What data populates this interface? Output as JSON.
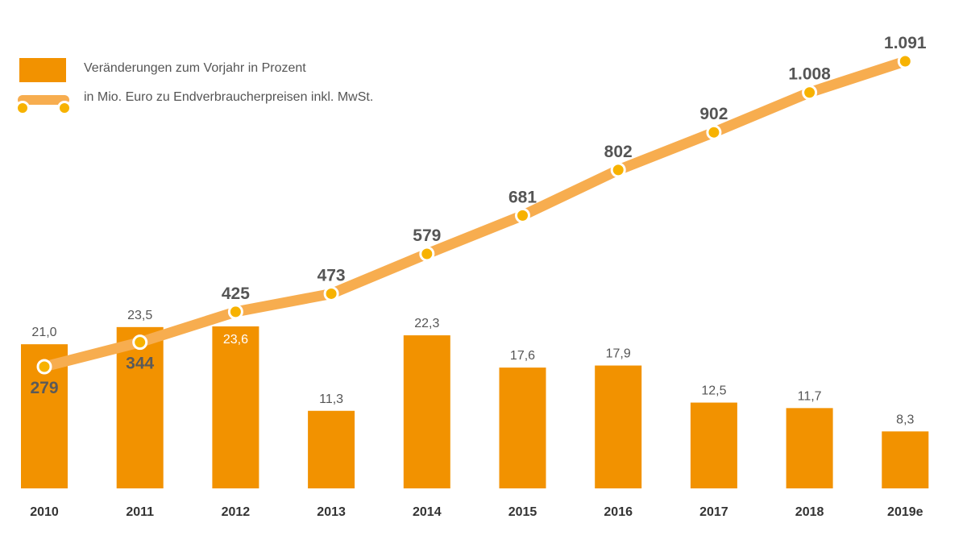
{
  "colors": {
    "bar": "#f29200",
    "line": "#f7ad4f",
    "marker": "#f7b200",
    "marker_ring": "#ffffff",
    "label": "#555555",
    "line_label": "#555555",
    "tick": "#333333",
    "inside_bar_text": "#ffffff",
    "inside_bar_value": "#5a5a5a"
  },
  "legend": {
    "bar_label": "Veränderungen zum Vorjahr in Prozent",
    "line_label": "in Mio. Euro zu Endverbraucherpreisen inkl. MwSt."
  },
  "chart_data": {
    "type": "bar+line",
    "title": "",
    "xlabel": "",
    "ylabel": "",
    "categories": [
      "2010",
      "2011",
      "2012",
      "2013",
      "2014",
      "2015",
      "2016",
      "2017",
      "2018",
      "2019e"
    ],
    "series": [
      {
        "name": "Veränderungen zum Vorjahr in Prozent",
        "type": "bar",
        "values": [
          21.0,
          23.5,
          23.6,
          11.3,
          22.3,
          17.6,
          17.9,
          12.5,
          11.7,
          8.3
        ],
        "labels": [
          "21,0",
          "23,5",
          "23,6",
          "11,3",
          "22,3",
          "17,6",
          "17,9",
          "12,5",
          "11,7",
          "8,3"
        ],
        "ylim": [
          0,
          23.6
        ]
      },
      {
        "name": "in Mio. Euro zu Endverbraucherpreisen inkl. MwSt.",
        "type": "line",
        "values": [
          279,
          344,
          425,
          473,
          579,
          681,
          802,
          902,
          1008,
          1091
        ],
        "labels": [
          "279",
          "344",
          "425",
          "473",
          "579",
          "681",
          "802",
          "902",
          "1.008",
          "1.091"
        ],
        "ylim": [
          279,
          1091
        ]
      }
    ],
    "grid": false,
    "legend_position": "top-left"
  }
}
